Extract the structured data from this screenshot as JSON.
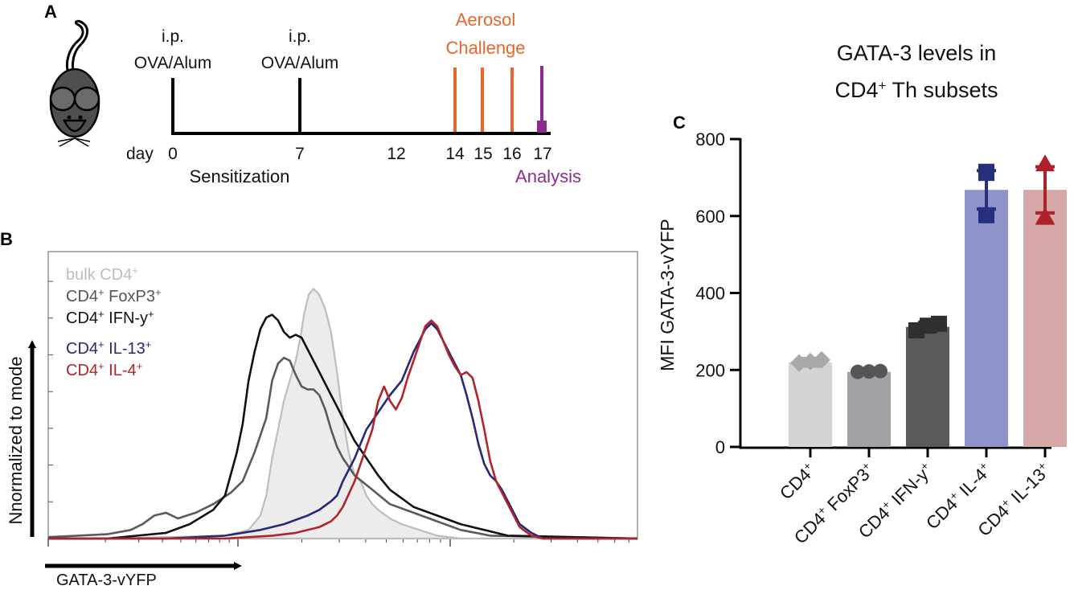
{
  "panel_a": {
    "label": "A",
    "injection_label_line1": "i.p.",
    "injection_label_line2": "OVA/Alum",
    "challenge_title_line1": "Aerosol",
    "challenge_title_line2": "Challenge",
    "day_word": "day",
    "days": [
      "0",
      "7",
      "12",
      "14",
      "15",
      "16",
      "17"
    ],
    "sensitization_label": "Sensitization",
    "analysis_label": "Analysis",
    "colors": {
      "timeline": "#000000",
      "challenge": "#e8662a",
      "analysis": "#8b2d8f",
      "mouse": "#4a4a4a"
    }
  },
  "panel_b": {
    "label": "B",
    "legend": [
      {
        "text": "bulk CD4",
        "sup": "+",
        "color": "#bdbdbd"
      },
      {
        "text": "CD4",
        "sup": "+",
        "text2": " FoxP3",
        "sup2": "+",
        "color": "#555555"
      },
      {
        "text": "CD4",
        "sup": "+",
        "text2": " IFN-y",
        "sup2": "+",
        "color": "#111111"
      },
      {
        "text": "CD4",
        "sup": "+",
        "text2": " IL-13",
        "sup2": "+",
        "color": "#27287a"
      },
      {
        "text": "CD4",
        "sup": "+",
        "text2": " IL-4",
        "sup2": "+",
        "color": "#b1242a"
      }
    ],
    "ylabel": "Nnormalized to mode",
    "xlabel": "GATA-3-vYFP"
  },
  "panel_c": {
    "label": "C",
    "title_line1": "GATA-3 levels in",
    "title_line2_a": "CD4",
    "title_line2_sup": "+",
    "title_line2_b": " Th subsets"
  },
  "chart_data": [
    {
      "type": "line",
      "title": "",
      "xlabel": "GATA-3-vYFP",
      "ylabel": "Nnormalized to mode",
      "x_scale": "log",
      "xlim": [
        0,
        100
      ],
      "ylim": [
        0,
        100
      ],
      "series": [
        {
          "name": "bulk CD4+",
          "color": "#bdbdbd",
          "filled": true,
          "points": [
            [
              0,
              0
            ],
            [
              10,
              0
            ],
            [
              20,
              0.5
            ],
            [
              30,
              1
            ],
            [
              34,
              3
            ],
            [
              36,
              8
            ],
            [
              37,
              15
            ],
            [
              38,
              28
            ],
            [
              39,
              38
            ],
            [
              40,
              48
            ],
            [
              41,
              55
            ],
            [
              42,
              62
            ],
            [
              42.8,
              70
            ],
            [
              43.4,
              78
            ],
            [
              44.2,
              85
            ],
            [
              45,
              87
            ],
            [
              46,
              85
            ],
            [
              47,
              80
            ],
            [
              48,
              72
            ],
            [
              49,
              58
            ],
            [
              50,
              42
            ],
            [
              51,
              30
            ],
            [
              52,
              22
            ],
            [
              53,
              20
            ],
            [
              54,
              15
            ],
            [
              55,
              12
            ],
            [
              56,
              10
            ],
            [
              58,
              7
            ],
            [
              60,
              5
            ],
            [
              63,
              3
            ],
            [
              66,
              1
            ],
            [
              70,
              0
            ],
            [
              100,
              0
            ]
          ]
        },
        {
          "name": "CD4+ FoxP3+",
          "color": "#5a5a5a",
          "filled": false,
          "points": [
            [
              0,
              0.5
            ],
            [
              5,
              1
            ],
            [
              10,
              1.5
            ],
            [
              14,
              3
            ],
            [
              16,
              5
            ],
            [
              18,
              8
            ],
            [
              20,
              9
            ],
            [
              22,
              7
            ],
            [
              25,
              9
            ],
            [
              28,
              12
            ],
            [
              31,
              16
            ],
            [
              33,
              20
            ],
            [
              35,
              30
            ],
            [
              37,
              42
            ],
            [
              38,
              55
            ],
            [
              39,
              61
            ],
            [
              40,
              63
            ],
            [
              41,
              62
            ],
            [
              42,
              57
            ],
            [
              43,
              53
            ],
            [
              44,
              52
            ],
            [
              45,
              52
            ],
            [
              46,
              50
            ],
            [
              47,
              45
            ],
            [
              48,
              38
            ],
            [
              49,
              32
            ],
            [
              50,
              28
            ],
            [
              52,
              22
            ],
            [
              55,
              17
            ],
            [
              58,
              12
            ],
            [
              62,
              9
            ],
            [
              66,
              6
            ],
            [
              70,
              3
            ],
            [
              75,
              1
            ],
            [
              100,
              0
            ]
          ]
        },
        {
          "name": "CD4+ IFN-y+",
          "color": "#111111",
          "filled": false,
          "points": [
            [
              0,
              0
            ],
            [
              10,
              0
            ],
            [
              20,
              2
            ],
            [
              24,
              5
            ],
            [
              28,
              10
            ],
            [
              30,
              15
            ],
            [
              32,
              30
            ],
            [
              33,
              40
            ],
            [
              34,
              55
            ],
            [
              35,
              65
            ],
            [
              36,
              73
            ],
            [
              37,
              77
            ],
            [
              38,
              78
            ],
            [
              39,
              76
            ],
            [
              40,
              72
            ],
            [
              41,
              70
            ],
            [
              42,
              71
            ],
            [
              43,
              70
            ],
            [
              44,
              66
            ],
            [
              45,
              62
            ],
            [
              46,
              58
            ],
            [
              47,
              54
            ],
            [
              48,
              50
            ],
            [
              49,
              46
            ],
            [
              50,
              42
            ],
            [
              51,
              38
            ],
            [
              52,
              34
            ],
            [
              54,
              28
            ],
            [
              56,
              22
            ],
            [
              58,
              17
            ],
            [
              62,
              11
            ],
            [
              66,
              8
            ],
            [
              70,
              5
            ],
            [
              74,
              3
            ],
            [
              78,
              1
            ],
            [
              100,
              0
            ]
          ]
        },
        {
          "name": "CD4+ IL-13+",
          "color": "#27287a",
          "filled": false,
          "points": [
            [
              0,
              0
            ],
            [
              20,
              0
            ],
            [
              30,
              1
            ],
            [
              36,
              3
            ],
            [
              40,
              5
            ],
            [
              44,
              8
            ],
            [
              46,
              10
            ],
            [
              48,
              13
            ],
            [
              49,
              15
            ],
            [
              50,
              20
            ],
            [
              52,
              28
            ],
            [
              54,
              38
            ],
            [
              56,
              44
            ],
            [
              58,
              50
            ],
            [
              60,
              55
            ],
            [
              61,
              60
            ],
            [
              62,
              65
            ],
            [
              63,
              69
            ],
            [
              64,
              73
            ],
            [
              65,
              75
            ],
            [
              66,
              73
            ],
            [
              67,
              69
            ],
            [
              68,
              65
            ],
            [
              69,
              61
            ],
            [
              70,
              57
            ],
            [
              71,
              50
            ],
            [
              72,
              42
            ],
            [
              73,
              33
            ],
            [
              74,
              26
            ],
            [
              75,
              22
            ],
            [
              76,
              20
            ],
            [
              77,
              17
            ],
            [
              78,
              13
            ],
            [
              79,
              9
            ],
            [
              80,
              5
            ],
            [
              82,
              2
            ],
            [
              84,
              0
            ],
            [
              100,
              0
            ]
          ]
        },
        {
          "name": "CD4+ IL-4+",
          "color": "#b1242a",
          "filled": false,
          "points": [
            [
              0,
              0
            ],
            [
              20,
              0
            ],
            [
              30,
              0
            ],
            [
              38,
              1
            ],
            [
              42,
              2
            ],
            [
              46,
              4
            ],
            [
              48,
              6
            ],
            [
              49,
              8
            ],
            [
              50,
              11
            ],
            [
              52,
              20
            ],
            [
              54,
              32
            ],
            [
              55,
              38
            ],
            [
              56,
              48
            ],
            [
              57,
              53
            ],
            [
              58,
              48
            ],
            [
              59,
              45
            ],
            [
              60,
              49
            ],
            [
              61,
              56
            ],
            [
              62,
              62
            ],
            [
              63,
              68
            ],
            [
              64,
              74
            ],
            [
              65,
              76
            ],
            [
              66,
              74
            ],
            [
              67,
              69
            ],
            [
              68,
              64
            ],
            [
              69,
              60
            ],
            [
              70,
              57
            ],
            [
              71,
              58
            ],
            [
              72,
              56
            ],
            [
              73,
              48
            ],
            [
              74,
              38
            ],
            [
              75,
              27
            ],
            [
              76,
              20
            ],
            [
              77,
              16
            ],
            [
              78,
              12
            ],
            [
              79,
              8
            ],
            [
              80,
              4
            ],
            [
              82,
              1
            ],
            [
              84,
              0
            ],
            [
              100,
              0
            ]
          ]
        }
      ]
    },
    {
      "type": "bar",
      "title": "GATA-3 levels in CD4+ Th subsets",
      "xlabel": "",
      "ylabel": "MFI GATA-3-vYFP",
      "ylim": [
        0,
        800
      ],
      "yticks": [
        0,
        200,
        400,
        600,
        800
      ],
      "categories": [
        "CD4+",
        "CD4+ FoxP3+",
        "CD4+ IFN-y+",
        "CD4+ IL-4+",
        "CD4+ IL-13+"
      ],
      "category_parts": [
        {
          "a": "CD4",
          "sa": "+",
          "b": "",
          "sb": ""
        },
        {
          "a": "CD4",
          "sa": "+",
          "b": " FoxP3",
          "sb": "+"
        },
        {
          "a": "CD4",
          "sa": "+",
          "b": " IFN-y",
          "sb": "+"
        },
        {
          "a": "CD4",
          "sa": "+",
          "b": " IL-4",
          "sb": "+"
        },
        {
          "a": "CD4",
          "sa": "+",
          "b": " IL-13",
          "sb": "+"
        }
      ],
      "values": [
        220,
        195,
        312,
        668,
        668
      ],
      "errors": [
        10,
        5,
        12,
        50,
        60
      ],
      "bar_colors": [
        "#d3d5d4",
        "#a0a2a5",
        "#5a5a5a",
        "#8e93c9",
        "#d6a7a7"
      ],
      "marker_colors": [
        "#a8a8a8",
        "#555555",
        "#2f2f2f",
        "#262f7e",
        "#b02028"
      ],
      "marker_shapes": [
        "diamond",
        "circle",
        "square",
        "square",
        "triangle"
      ],
      "points": [
        [
          218,
          222,
          226
        ],
        [
          195,
          196,
          197
        ],
        [
          303,
          315,
          320
        ],
        [
          602,
          715,
          712
        ],
        [
          596,
          735,
          598
        ]
      ]
    }
  ]
}
